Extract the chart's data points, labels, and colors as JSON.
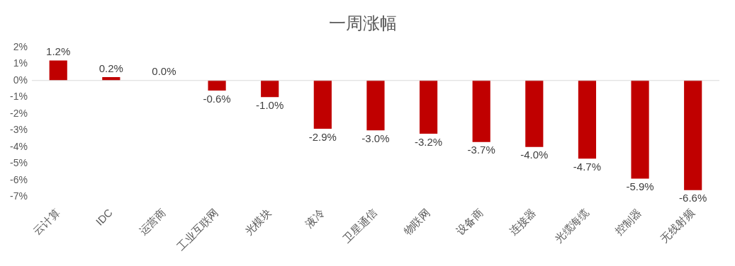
{
  "chart_data": {
    "type": "bar",
    "title": "一周涨幅",
    "categories": [
      "云计算",
      "IDC",
      "运营商",
      "工业互联网",
      "光模块",
      "液冷",
      "卫星通信",
      "物联网",
      "设备商",
      "连接器",
      "光缆海缆",
      "控制器",
      "无线射频"
    ],
    "values": [
      1.2,
      0.2,
      0.0,
      -0.6,
      -1.0,
      -2.9,
      -3.0,
      -3.2,
      -3.7,
      -4.0,
      -4.7,
      -5.9,
      -6.6
    ],
    "value_labels": [
      "1.2%",
      "0.2%",
      "0.0%",
      "-0.6%",
      "-1.0%",
      "-2.9%",
      "-3.0%",
      "-3.2%",
      "-3.7%",
      "-4.0%",
      "-4.7%",
      "-5.9%",
      "-6.6%"
    ],
    "color": "#c00000",
    "ylim": [
      -7,
      2
    ],
    "yticks": [
      {
        "value": 2,
        "label": "2%"
      },
      {
        "value": 1,
        "label": "1%"
      },
      {
        "value": 0,
        "label": "0%"
      },
      {
        "value": -1,
        "label": "-1%"
      },
      {
        "value": -2,
        "label": "-2%"
      },
      {
        "value": -3,
        "label": "-3%"
      },
      {
        "value": -4,
        "label": "-4%"
      },
      {
        "value": -5,
        "label": "-5%"
      },
      {
        "value": -6,
        "label": "-6%"
      },
      {
        "value": -7,
        "label": "-7%"
      }
    ],
    "ref_lines": [
      {
        "axis": "y",
        "value": 0,
        "color": "#d9d9d9"
      }
    ],
    "grid": false,
    "legend": false
  }
}
